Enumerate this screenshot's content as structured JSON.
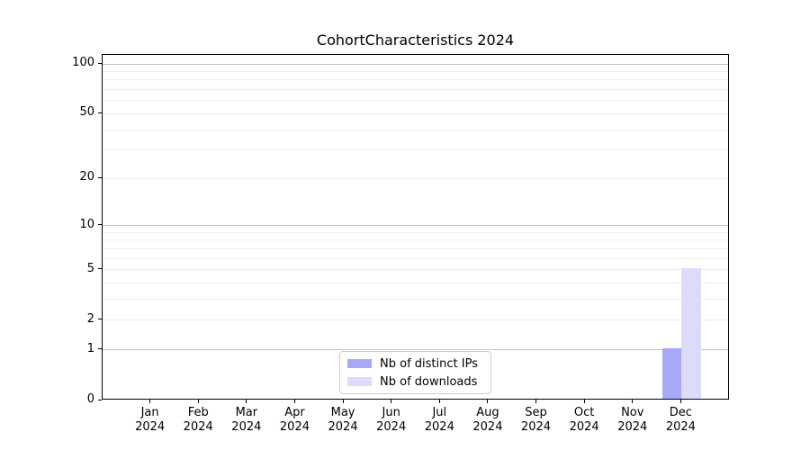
{
  "title": "CohortCharacteristics 2024",
  "year": "2024",
  "chart_data": {
    "type": "bar",
    "title": "CohortCharacteristics 2024",
    "xlabel": "",
    "ylabel": "",
    "categories": [
      "Jan 2024",
      "Feb 2024",
      "Mar 2024",
      "Apr 2024",
      "May 2024",
      "Jun 2024",
      "Jul 2024",
      "Aug 2024",
      "Sep 2024",
      "Oct 2024",
      "Nov 2024",
      "Dec 2024"
    ],
    "series": [
      {
        "name": "Nb of distinct IPs",
        "color": "#a8a8f8",
        "values": [
          0,
          0,
          0,
          0,
          0,
          0,
          0,
          0,
          0,
          0,
          0,
          1
        ]
      },
      {
        "name": "Nb of downloads",
        "color": "#dcdcfa",
        "values": [
          0,
          0,
          0,
          0,
          0,
          0,
          0,
          0,
          0,
          0,
          0,
          5
        ]
      }
    ],
    "y_scale": "log1p",
    "ylim": [
      0,
      113
    ],
    "y_ticks": [
      0,
      1,
      2,
      5,
      10,
      20,
      50,
      100
    ],
    "y_major_gridlines": [
      1,
      10,
      100
    ],
    "y_minor_gridlines": [
      2,
      3,
      4,
      5,
      6,
      7,
      8,
      9,
      20,
      30,
      40,
      50,
      60,
      70,
      80,
      90
    ],
    "grid": true,
    "legend_position": "lower center",
    "colors": {
      "major_grid": "#c2c2c2",
      "minor_grid": "#ededed",
      "spine": "#000000",
      "legend_border": "#cccccc"
    }
  }
}
